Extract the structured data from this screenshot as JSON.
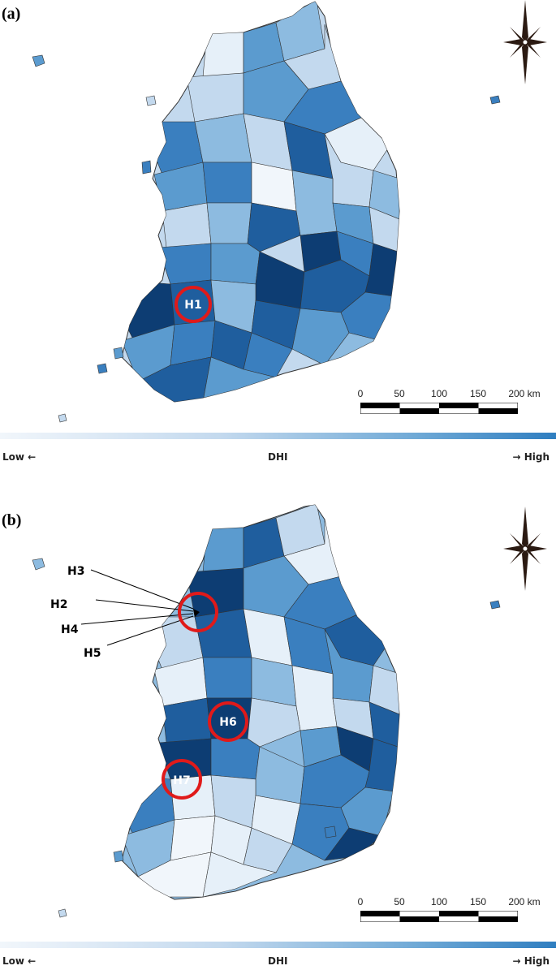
{
  "panels": [
    {
      "id": "a",
      "label": "(a)",
      "hotspots": [
        {
          "label": "H1"
        }
      ]
    },
    {
      "id": "b",
      "label": "(b)",
      "hotspots": [
        {
          "label": "H2"
        },
        {
          "label": "H3"
        },
        {
          "label": "H4"
        },
        {
          "label": "H5"
        },
        {
          "label": "H6"
        },
        {
          "label": "H7"
        }
      ]
    }
  ],
  "scale_bar": {
    "ticks": [
      "0",
      "50",
      "100",
      "150",
      "200 km"
    ]
  },
  "legend": {
    "low": "Low ←",
    "title": "DHI",
    "high": "→ High"
  },
  "colors": {
    "ramp": [
      "#f1f6fb",
      "#c3d9ee",
      "#8dbbe0",
      "#5b9bcf",
      "#3a7fbf",
      "#1f5e9e",
      "#0d3d73"
    ],
    "circle": "#e01a1a",
    "border": "#333333"
  }
}
